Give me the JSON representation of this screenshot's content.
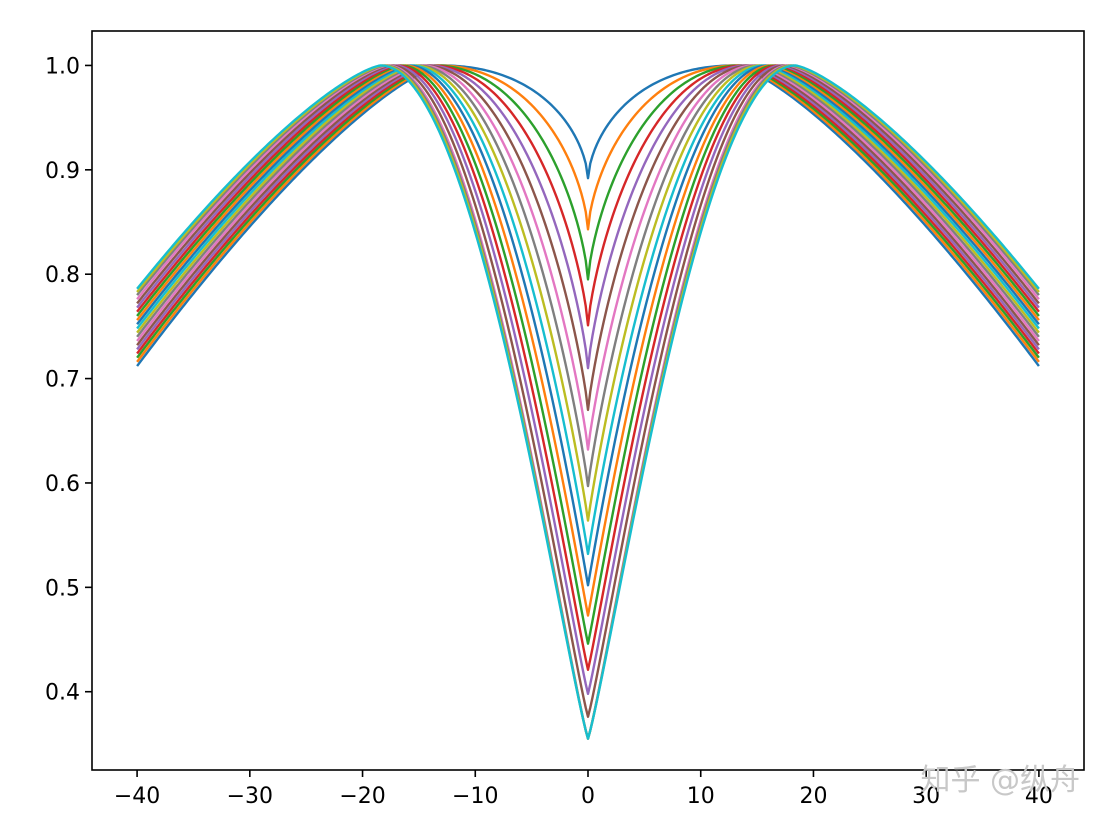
{
  "watermark": "知乎 @纵舟",
  "chart_data": {
    "type": "line",
    "title": "",
    "xlabel": "",
    "ylabel": "",
    "xlim": [
      -44,
      44
    ],
    "ylim": [
      0.325,
      1.033
    ],
    "xticks": [
      -40,
      -30,
      -20,
      -10,
      0,
      10,
      20,
      30,
      40
    ],
    "xtick_labels": [
      "−40",
      "−30",
      "−20",
      "−10",
      "0",
      "10",
      "20",
      "30",
      "40"
    ],
    "yticks": [
      0.4,
      0.5,
      0.6,
      0.7,
      0.8,
      0.9,
      1.0
    ],
    "ytick_labels": [
      "0.4",
      "0.5",
      "0.6",
      "0.7",
      "0.8",
      "0.9",
      "1.0"
    ],
    "grid": false,
    "legend": "none",
    "x_range": [
      -40,
      40
    ],
    "colors": [
      "#1f77b4",
      "#ff7f0e",
      "#2ca02c",
      "#d62728",
      "#9467bd",
      "#8c564b",
      "#e377c2",
      "#7f7f7f",
      "#bcbd22",
      "#17becf"
    ],
    "series": [
      {
        "peak_x": 13.0,
        "min_y": 0.892,
        "edge_y": 0.712
      },
      {
        "peak_x": 13.3,
        "min_y": 0.843,
        "edge_y": 0.716
      },
      {
        "peak_x": 13.6,
        "min_y": 0.795,
        "edge_y": 0.72
      },
      {
        "peak_x": 13.9,
        "min_y": 0.751,
        "edge_y": 0.724
      },
      {
        "peak_x": 14.2,
        "min_y": 0.71,
        "edge_y": 0.728
      },
      {
        "peak_x": 14.5,
        "min_y": 0.67,
        "edge_y": 0.732
      },
      {
        "peak_x": 14.8,
        "min_y": 0.632,
        "edge_y": 0.736
      },
      {
        "peak_x": 15.1,
        "min_y": 0.597,
        "edge_y": 0.74
      },
      {
        "peak_x": 15.4,
        "min_y": 0.564,
        "edge_y": 0.744
      },
      {
        "peak_x": 15.7,
        "min_y": 0.532,
        "edge_y": 0.748
      },
      {
        "peak_x": 16.0,
        "min_y": 0.502,
        "edge_y": 0.752
      },
      {
        "peak_x": 16.3,
        "min_y": 0.473,
        "edge_y": 0.756
      },
      {
        "peak_x": 16.6,
        "min_y": 0.446,
        "edge_y": 0.76
      },
      {
        "peak_x": 16.9,
        "min_y": 0.421,
        "edge_y": 0.764
      },
      {
        "peak_x": 17.2,
        "min_y": 0.398,
        "edge_y": 0.768
      },
      {
        "peak_x": 17.5,
        "min_y": 0.376,
        "edge_y": 0.772
      },
      {
        "peak_x": 17.8,
        "min_y": 0.355,
        "edge_y": 0.776
      },
      {
        "peak_x": 18.0,
        "min_y": 0.355,
        "edge_y": 0.78
      },
      {
        "peak_x": 18.2,
        "min_y": 0.355,
        "edge_y": 0.783
      },
      {
        "peak_x": 18.4,
        "min_y": 0.355,
        "edge_y": 0.786
      }
    ]
  }
}
